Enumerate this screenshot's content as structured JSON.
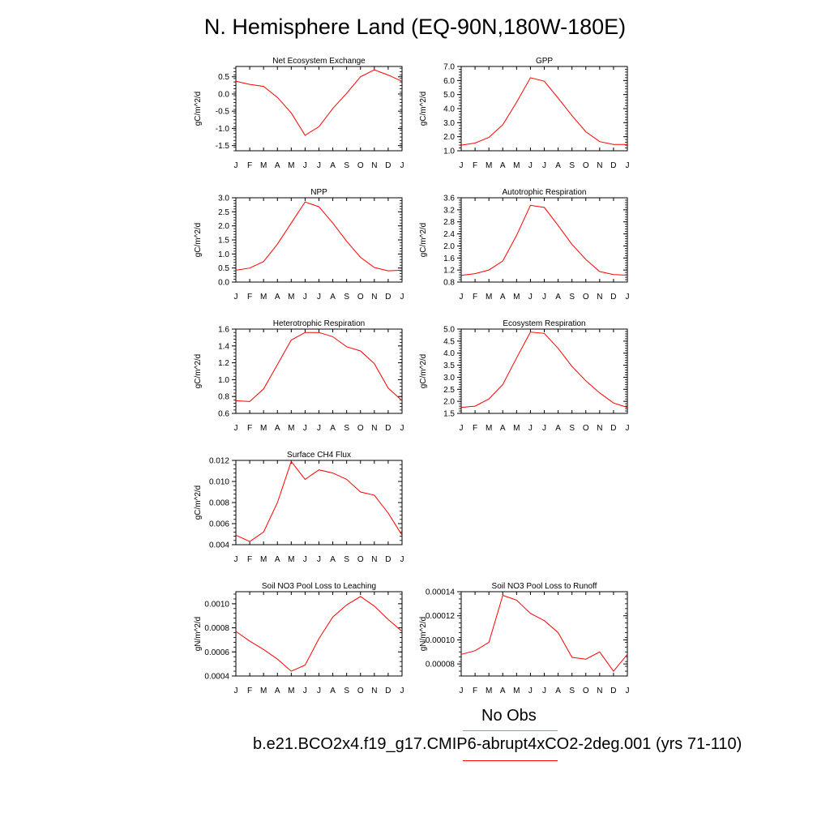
{
  "title": "N. Hemisphere Land (EQ-90N,180W-180E)",
  "legend": {
    "obs_label": "No Obs",
    "model_label": "b.e21.BCO2x4.f19_g17.CMIP6-abrupt4xCO2-2deg.001 (yrs 71-110)",
    "obs_color": "#8c8cff",
    "model_color": "#ff0000"
  },
  "chart_data": [
    {
      "type": "line",
      "title": "Net Ecosystem Exchange",
      "ylabel": "gC/m^2/d",
      "categories": [
        "J",
        "F",
        "M",
        "A",
        "M",
        "J",
        "J",
        "A",
        "S",
        "O",
        "N",
        "D",
        "J"
      ],
      "ylim": [
        -1.65,
        0.8
      ],
      "yticks": [
        0.5,
        0.0,
        -0.5,
        -1.0,
        -1.5
      ],
      "ytick_labels": [
        "0.5",
        "0.0",
        "-0.5",
        "-1.0",
        "-1.5"
      ],
      "series": [
        {
          "color": "#ff0000",
          "values": [
            0.37,
            0.28,
            0.22,
            -0.1,
            -0.55,
            -1.2,
            -0.95,
            -0.42,
            0.02,
            0.5,
            0.7,
            0.55,
            0.37
          ]
        }
      ]
    },
    {
      "type": "line",
      "title": "GPP",
      "ylabel": "gC/m^2/d",
      "categories": [
        "J",
        "F",
        "M",
        "A",
        "M",
        "J",
        "J",
        "A",
        "S",
        "O",
        "N",
        "D",
        "J"
      ],
      "ylim": [
        1.0,
        7.0
      ],
      "yticks": [
        1.0,
        2.0,
        3.0,
        4.0,
        5.0,
        6.0,
        7.0
      ],
      "ytick_labels": [
        "1.0",
        "2.0",
        "3.0",
        "4.0",
        "5.0",
        "6.0",
        "7.0"
      ],
      "series": [
        {
          "color": "#ff0000",
          "values": [
            1.4,
            1.55,
            1.95,
            2.85,
            4.45,
            6.2,
            5.95,
            4.75,
            3.5,
            2.35,
            1.65,
            1.45,
            1.45
          ]
        }
      ]
    },
    {
      "type": "line",
      "title": "NPP",
      "ylabel": "gC/m^2/d",
      "categories": [
        "J",
        "F",
        "M",
        "A",
        "M",
        "J",
        "J",
        "A",
        "S",
        "O",
        "N",
        "D",
        "J"
      ],
      "ylim": [
        0.0,
        3.0
      ],
      "yticks": [
        0.0,
        0.5,
        1.0,
        1.5,
        2.0,
        2.5,
        3.0
      ],
      "ytick_labels": [
        "0.0",
        "0.5",
        "1.0",
        "1.5",
        "2.0",
        "2.5",
        "3.0"
      ],
      "series": [
        {
          "color": "#ff0000",
          "values": [
            0.42,
            0.5,
            0.73,
            1.35,
            2.1,
            2.85,
            2.68,
            2.1,
            1.45,
            0.88,
            0.52,
            0.4,
            0.42
          ]
        }
      ]
    },
    {
      "type": "line",
      "title": "Autotrophic Respiration",
      "ylabel": "gC/m^2/d",
      "categories": [
        "J",
        "F",
        "M",
        "A",
        "M",
        "J",
        "J",
        "A",
        "S",
        "O",
        "N",
        "D",
        "J"
      ],
      "ylim": [
        0.8,
        3.6
      ],
      "yticks": [
        0.8,
        1.2,
        1.6,
        2.0,
        2.4,
        2.8,
        3.2,
        3.6
      ],
      "ytick_labels": [
        "0.8",
        "1.2",
        "1.6",
        "2.0",
        "2.4",
        "2.8",
        "3.2",
        "3.6"
      ],
      "series": [
        {
          "color": "#ff0000",
          "values": [
            1.02,
            1.08,
            1.2,
            1.5,
            2.35,
            3.35,
            3.28,
            2.68,
            2.05,
            1.55,
            1.15,
            1.05,
            1.03
          ]
        }
      ]
    },
    {
      "type": "line",
      "title": "Heterotrophic Respiration",
      "ylabel": "gC/m^2/d",
      "categories": [
        "J",
        "F",
        "M",
        "A",
        "M",
        "J",
        "J",
        "A",
        "S",
        "O",
        "N",
        "D",
        "J"
      ],
      "ylim": [
        0.6,
        1.6
      ],
      "yticks": [
        0.6,
        0.8,
        1.0,
        1.2,
        1.4,
        1.6
      ],
      "ytick_labels": [
        "0.6",
        "0.8",
        "1.0",
        "1.2",
        "1.4",
        "1.6"
      ],
      "series": [
        {
          "color": "#ff0000",
          "values": [
            0.75,
            0.74,
            0.89,
            1.18,
            1.47,
            1.56,
            1.56,
            1.51,
            1.39,
            1.34,
            1.19,
            0.9,
            0.75
          ]
        }
      ]
    },
    {
      "type": "line",
      "title": "Ecosystem Respiration",
      "ylabel": "gC/m^2/d",
      "categories": [
        "J",
        "F",
        "M",
        "A",
        "M",
        "J",
        "J",
        "A",
        "S",
        "O",
        "N",
        "D",
        "J"
      ],
      "ylim": [
        1.5,
        5.0
      ],
      "yticks": [
        1.5,
        2.0,
        2.5,
        3.0,
        3.5,
        4.0,
        4.5,
        5.0
      ],
      "ytick_labels": [
        "1.5",
        "2.0",
        "2.5",
        "3.0",
        "3.5",
        "4.0",
        "4.5",
        "5.0"
      ],
      "series": [
        {
          "color": "#ff0000",
          "values": [
            1.75,
            1.8,
            2.1,
            2.7,
            3.8,
            4.88,
            4.82,
            4.2,
            3.45,
            2.85,
            2.35,
            1.93,
            1.75
          ]
        }
      ]
    },
    {
      "type": "line",
      "title": "Surface CH4 Flux",
      "ylabel": "gC/m^2/d",
      "categories": [
        "J",
        "F",
        "M",
        "A",
        "M",
        "J",
        "J",
        "A",
        "S",
        "O",
        "N",
        "D",
        "J"
      ],
      "ylim": [
        0.004,
        0.012
      ],
      "yticks": [
        0.004,
        0.006,
        0.008,
        0.01,
        0.012
      ],
      "ytick_labels": [
        "0.004",
        "0.006",
        "0.008",
        "0.010",
        "0.012"
      ],
      "series": [
        {
          "color": "#ff0000",
          "values": [
            0.0049,
            0.0043,
            0.0052,
            0.008,
            0.0119,
            0.0102,
            0.0111,
            0.0108,
            0.0102,
            0.009,
            0.0087,
            0.007,
            0.0049
          ]
        }
      ]
    },
    {
      "type": "line",
      "title": "Soil NO3 Pool Loss to Leaching",
      "ylabel": "gN/m^2/d",
      "categories": [
        "J",
        "F",
        "M",
        "A",
        "M",
        "J",
        "J",
        "A",
        "S",
        "O",
        "N",
        "D",
        "J"
      ],
      "ylim": [
        0.0004,
        0.0011
      ],
      "yticks": [
        0.0004,
        0.0006,
        0.0008,
        0.001
      ],
      "ytick_labels": [
        "0.0004",
        "0.0006",
        "0.0008",
        "0.0010"
      ],
      "series": [
        {
          "color": "#ff0000",
          "values": [
            0.00077,
            0.00069,
            0.00062,
            0.00054,
            0.00044,
            0.00049,
            0.00071,
            0.00089,
            0.00099,
            0.00106,
            0.00098,
            0.00087,
            0.00077
          ]
        }
      ]
    },
    {
      "type": "line",
      "title": "Soil NO3 Pool Loss to Runoff",
      "ylabel": "gN/m^2/d",
      "categories": [
        "J",
        "F",
        "M",
        "A",
        "M",
        "J",
        "J",
        "A",
        "S",
        "O",
        "N",
        "D",
        "J"
      ],
      "ylim": [
        7e-05,
        0.00014
      ],
      "yticks": [
        8e-05,
        0.0001,
        0.00012,
        0.00014
      ],
      "ytick_labels": [
        "0.00008",
        "0.00010",
        "0.00012",
        "0.00014"
      ],
      "series": [
        {
          "color": "#ff0000",
          "values": [
            8.8e-05,
            9.1e-05,
            9.8e-05,
            0.000137,
            0.000133,
            0.000122,
            0.000116,
            0.000106,
            8.55e-05,
            8.4e-05,
            9e-05,
            7.4e-05,
            8.8e-05
          ]
        }
      ]
    }
  ]
}
